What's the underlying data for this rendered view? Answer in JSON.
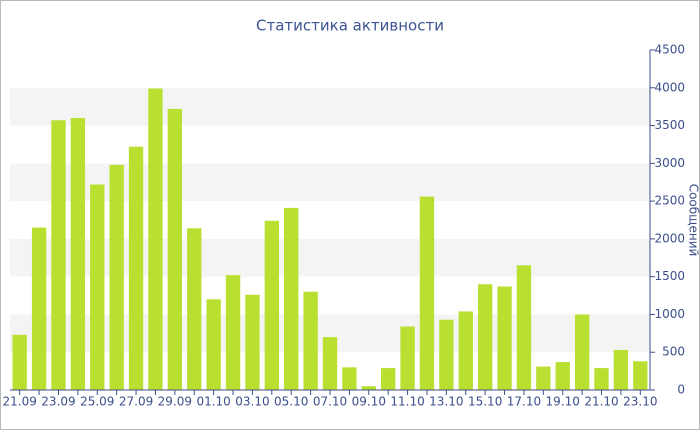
{
  "chart_data": {
    "type": "bar",
    "title": "Статистика активности",
    "y_axis_label": "Сообщений",
    "categories": [
      "21.09",
      null,
      "23.09",
      null,
      "25.09",
      null,
      "27.09",
      null,
      "29.09",
      null,
      "01.10",
      null,
      "03.10",
      null,
      "05.10",
      null,
      "07.10",
      null,
      "09.10",
      null,
      "11.10",
      null,
      "13.10",
      null,
      "15.10",
      null,
      "17.10",
      null,
      "19.10",
      null,
      "21.10",
      null,
      "23.10"
    ],
    "values": [
      730,
      2150,
      3570,
      3600,
      2720,
      2980,
      3220,
      3990,
      3720,
      2140,
      1200,
      1520,
      1260,
      2240,
      2410,
      1300,
      700,
      300,
      50,
      290,
      840,
      2560,
      930,
      1040,
      1400,
      1370,
      1650,
      310,
      370,
      1000,
      290,
      530,
      380
    ],
    "color": "#b9e030",
    "ylim": [
      0,
      4500
    ],
    "yticks": [
      0,
      500,
      1000,
      1500,
      2000,
      2500,
      3000,
      3500,
      4000,
      4500
    ],
    "grid": true
  }
}
